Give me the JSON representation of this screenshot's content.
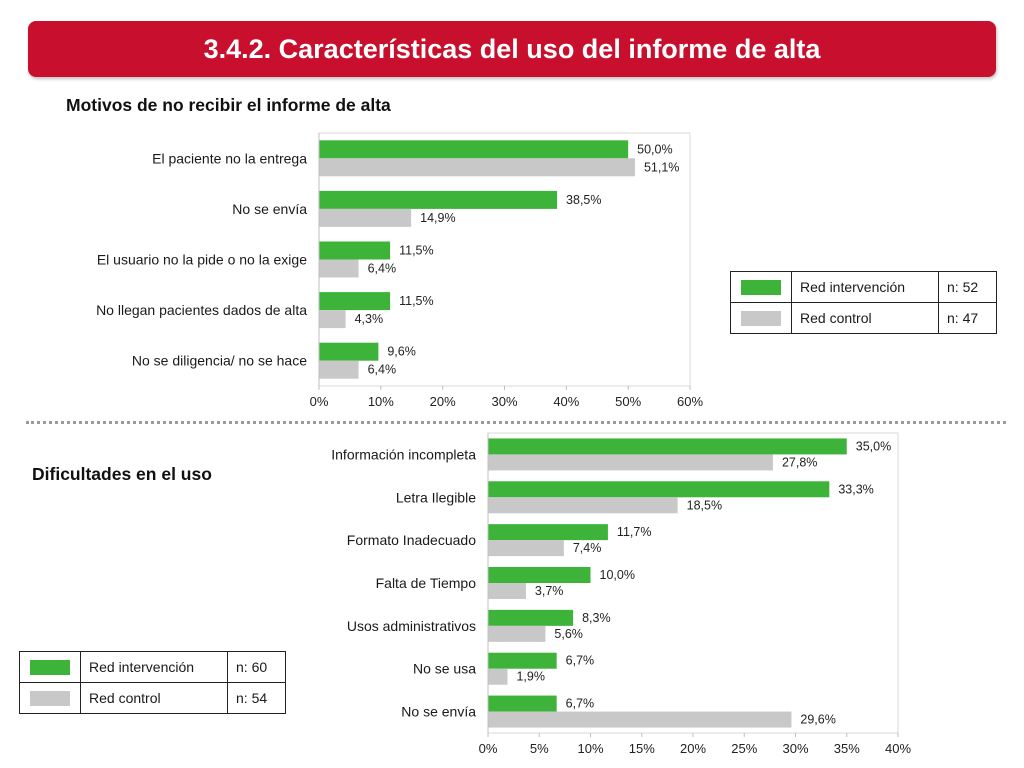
{
  "header": {
    "title": "3.4.2. Características del uso del informe de alta"
  },
  "colors": {
    "brand": "#c8102e",
    "intervention": "#3db33a",
    "control": "#c8c8c8"
  },
  "section1": {
    "title": "Motivos de no recibir el informe de alta"
  },
  "section2": {
    "title": "Dificultades en el uso"
  },
  "legend1": {
    "rows": [
      {
        "label": "Red intervención",
        "n": "n: 52"
      },
      {
        "label": "Red control",
        "n": "n: 47"
      }
    ]
  },
  "legend2": {
    "rows": [
      {
        "label": "Red intervención",
        "n": "n: 60"
      },
      {
        "label": "Red control",
        "n": "n: 54"
      }
    ]
  },
  "chart_data": [
    {
      "type": "bar",
      "orientation": "horizontal",
      "title": "Motivos de no recibir el informe de alta",
      "categories": [
        "El paciente no la entrega",
        "No se envía",
        "El usuario no la pide o no la exige",
        "No llegan pacientes dados de alta",
        "No se diligencia/ no se hace"
      ],
      "series": [
        {
          "name": "Red intervención",
          "values": [
            50.0,
            38.5,
            11.5,
            11.5,
            9.6
          ],
          "labels": [
            "50,0%",
            "38,5%",
            "11,5%",
            "11,5%",
            "9,6%"
          ]
        },
        {
          "name": "Red control",
          "values": [
            51.1,
            14.9,
            6.4,
            4.3,
            6.4
          ],
          "labels": [
            "51,1%",
            "14,9%",
            "6,4%",
            "4,3%",
            "6,4%"
          ]
        }
      ],
      "xlim": [
        0,
        60
      ],
      "xticks": [
        "0%",
        "10%",
        "20%",
        "30%",
        "40%",
        "50%",
        "60%"
      ],
      "grid": false
    },
    {
      "type": "bar",
      "orientation": "horizontal",
      "title": "Dificultades en el uso",
      "categories": [
        "Información incompleta",
        "Letra Ilegible",
        "Formato Inadecuado",
        "Falta de Tiempo",
        "Usos administrativos",
        "No se usa",
        "No se envía"
      ],
      "series": [
        {
          "name": "Red intervención",
          "values": [
            35.0,
            33.3,
            11.7,
            10.0,
            8.3,
            6.7,
            6.7
          ],
          "labels": [
            "35,0%",
            "33,3%",
            "11,7%",
            "10,0%",
            "8,3%",
            "6,7%",
            "6,7%"
          ]
        },
        {
          "name": "Red control",
          "values": [
            27.8,
            18.5,
            7.4,
            3.7,
            5.6,
            1.9,
            29.6
          ],
          "labels": [
            "27,8%",
            "18,5%",
            "7,4%",
            "3,7%",
            "5,6%",
            "1,9%",
            "29,6%"
          ]
        }
      ],
      "xlim": [
        0,
        40
      ],
      "xticks": [
        "0%",
        "5%",
        "10%",
        "15%",
        "20%",
        "25%",
        "30%",
        "35%",
        "40%"
      ],
      "grid": false
    }
  ]
}
